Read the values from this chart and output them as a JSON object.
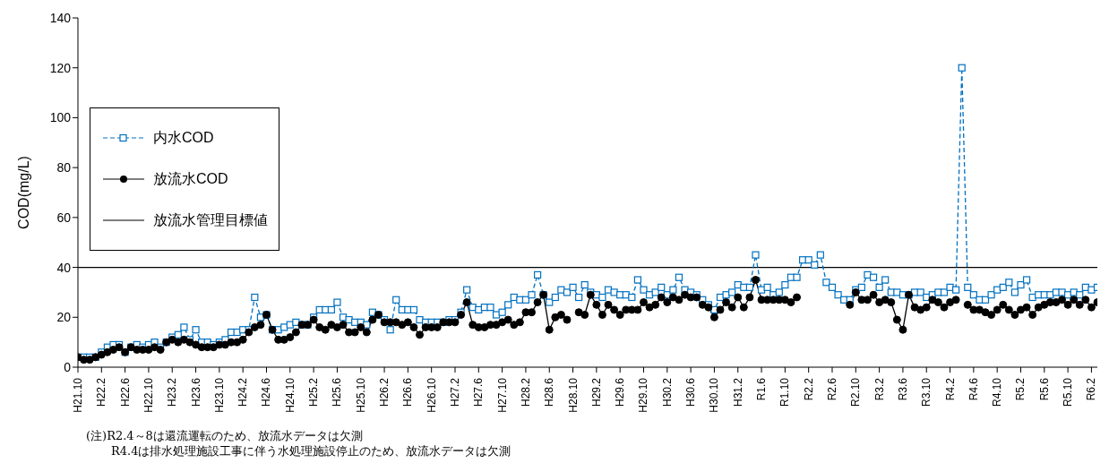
{
  "chart_data": {
    "type": "line",
    "ylabel": "COD(mg/L)",
    "ylim": [
      0,
      140
    ],
    "yticks": [
      0,
      20,
      40,
      60,
      80,
      100,
      120,
      140
    ],
    "legend": "left",
    "categories": [
      "H21.10",
      null,
      null,
      null,
      "H22.2",
      null,
      null,
      null,
      "H22.6",
      null,
      null,
      null,
      "H22.10",
      null,
      null,
      null,
      "H23.2",
      null,
      null,
      null,
      "H23.6",
      null,
      null,
      null,
      "H23.10",
      null,
      null,
      null,
      "H24.2",
      null,
      null,
      null,
      "H24.6",
      null,
      null,
      null,
      "H24.10",
      null,
      null,
      null,
      "H25.2",
      null,
      null,
      null,
      "H25.6",
      null,
      null,
      null,
      "H25.10",
      null,
      null,
      null,
      "H26.2",
      null,
      null,
      null,
      "H26.6",
      null,
      null,
      null,
      "H26.10",
      null,
      null,
      null,
      "H27.2",
      null,
      null,
      null,
      "H27.6",
      null,
      null,
      null,
      "H27.10",
      null,
      null,
      null,
      "H28.2",
      null,
      null,
      null,
      "H28.6",
      null,
      null,
      null,
      "H28.10",
      null,
      null,
      null,
      "H29.2",
      null,
      null,
      null,
      "H29.6",
      null,
      null,
      null,
      "H29.10",
      null,
      null,
      null,
      "H30.2",
      null,
      null,
      null,
      "H30.6",
      null,
      null,
      null,
      "H30.10",
      null,
      null,
      null,
      "H31.2",
      null,
      null,
      null,
      "R1.6",
      null,
      null,
      null,
      "R1.10",
      null,
      null,
      null,
      "R2.2",
      null,
      null,
      null,
      "R2.6",
      null,
      null,
      null,
      "R2.10",
      null,
      null,
      null,
      "R3.2",
      null,
      null,
      null,
      "R3.6",
      null,
      null,
      null,
      "R3.10",
      null,
      null,
      null,
      "R4.2",
      null,
      null,
      null,
      "R4.6",
      null,
      null,
      null,
      "R4.10",
      null,
      null,
      null,
      "R5.2",
      null,
      null,
      null,
      "R5.6",
      null,
      null,
      null,
      "R5.10",
      null,
      null,
      null,
      "R6.2",
      null
    ],
    "series": [
      {
        "name": "内水COD",
        "color": "#0070c0",
        "marker": "square",
        "line_style": "dashed",
        "values": [
          4,
          4,
          4,
          4,
          6,
          8,
          9,
          9,
          6,
          8,
          9,
          8,
          9,
          10,
          8,
          10,
          12,
          13,
          16,
          11,
          15,
          10,
          10,
          9,
          10,
          11,
          14,
          14,
          15,
          15,
          28,
          20,
          21,
          15,
          15,
          16,
          17,
          18,
          17,
          17,
          20,
          23,
          23,
          23,
          26,
          20,
          19,
          18,
          18,
          17,
          22,
          21,
          19,
          15,
          27,
          23,
          23,
          23,
          19,
          18,
          18,
          18,
          18,
          19,
          19,
          22,
          31,
          24,
          23,
          24,
          24,
          21,
          22,
          25,
          28,
          27,
          27,
          29,
          37,
          29,
          26,
          28,
          31,
          30,
          32,
          28,
          33,
          30,
          29,
          28,
          31,
          30,
          29,
          29,
          28,
          35,
          31,
          29,
          30,
          32,
          29,
          31,
          36,
          31,
          30,
          29,
          27,
          25,
          23,
          28,
          29,
          30,
          33,
          32,
          32,
          45,
          31,
          32,
          29,
          30,
          33,
          36,
          36,
          43,
          43,
          41,
          45,
          34,
          32,
          29,
          27,
          27,
          31,
          32,
          37,
          36,
          32,
          35,
          30,
          30,
          29,
          29,
          30,
          30,
          28,
          29,
          30,
          30,
          32,
          31,
          120,
          32,
          29,
          27,
          27,
          29,
          31,
          32,
          34,
          30,
          33,
          35,
          28,
          29,
          29,
          29,
          30,
          30,
          29,
          30,
          29,
          32,
          31,
          32
        ]
      },
      {
        "name": "放流水COD",
        "color": "#000000",
        "marker": "circle",
        "line_style": "solid",
        "values": [
          4,
          3,
          3,
          4,
          5,
          6,
          7,
          8,
          6,
          8,
          7,
          7,
          7,
          8,
          7,
          10,
          11,
          10,
          11,
          10,
          9,
          8,
          8,
          8,
          9,
          9,
          10,
          10,
          11,
          14,
          16,
          17,
          21,
          15,
          11,
          11,
          12,
          14,
          17,
          17,
          19,
          16,
          15,
          17,
          16,
          17,
          14,
          14,
          16,
          14,
          19,
          21,
          18,
          18,
          18,
          17,
          18,
          16,
          13,
          16,
          16,
          16,
          18,
          18,
          18,
          21,
          26,
          17,
          16,
          16,
          17,
          17,
          18,
          19,
          17,
          18,
          22,
          22,
          26,
          29,
          15,
          20,
          21,
          19,
          null,
          22,
          21,
          29,
          25,
          21,
          25,
          23,
          21,
          23,
          23,
          23,
          26,
          24,
          25,
          28,
          26,
          28,
          27,
          29,
          28,
          28,
          25,
          24,
          20,
          23,
          26,
          24,
          28,
          24,
          28,
          35,
          27,
          27,
          27,
          27,
          27,
          26,
          28,
          null,
          null,
          null,
          null,
          null,
          null,
          null,
          null,
          25,
          30,
          27,
          27,
          29,
          26,
          27,
          26,
          19,
          15,
          29,
          24,
          23,
          24,
          27,
          26,
          24,
          26,
          27,
          null,
          25,
          23,
          23,
          22,
          21,
          23,
          25,
          23,
          21,
          23,
          24,
          21,
          24,
          25,
          26,
          26,
          27,
          25,
          27,
          25,
          27,
          24,
          26
        ]
      }
    ],
    "ref_lines": [
      {
        "axis": "y",
        "value": 40,
        "label": "放流水管理目標値",
        "color": "#000000",
        "line_style": "solid"
      }
    ],
    "annotations": [
      "(注)R2.4～8は還流運転のため、放流水データは欠測",
      "R4.4は排水処理施設工事に伴う水処理施設停止のため、放流水データは欠測"
    ]
  }
}
